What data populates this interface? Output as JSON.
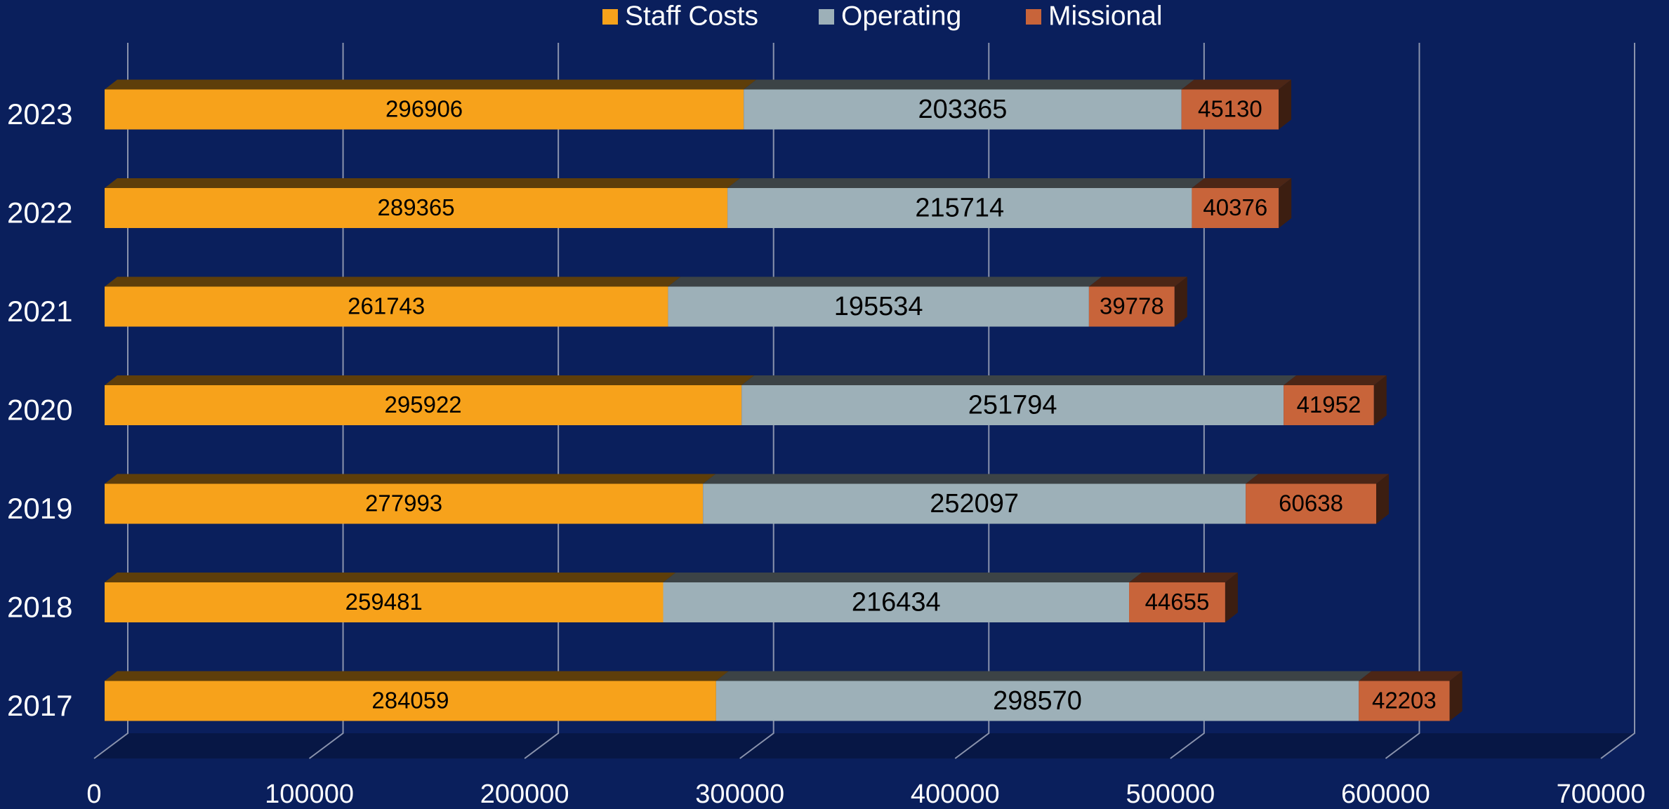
{
  "chart_data": {
    "type": "bar",
    "orientation": "horizontal",
    "stacked": true,
    "legend": "top",
    "grid": true,
    "categories": [
      "2023",
      "2022",
      "2021",
      "2020",
      "2019",
      "2018",
      "2017"
    ],
    "series": [
      {
        "name": "Staff Costs",
        "color": "#f7a21b",
        "values": [
          296906,
          289365,
          261743,
          295922,
          277993,
          259481,
          284059
        ]
      },
      {
        "name": "Operating",
        "color": "#9db0b8",
        "values": [
          203365,
          215714,
          195534,
          251794,
          252097,
          216434,
          298570
        ]
      },
      {
        "name": "Missional",
        "color": "#c8643a",
        "values": [
          45130,
          40376,
          39778,
          41952,
          60638,
          44655,
          42203
        ]
      }
    ],
    "xlim": [
      0,
      700000
    ],
    "xticks": [
      0,
      100000,
      200000,
      300000,
      400000,
      500000,
      600000,
      700000
    ]
  }
}
